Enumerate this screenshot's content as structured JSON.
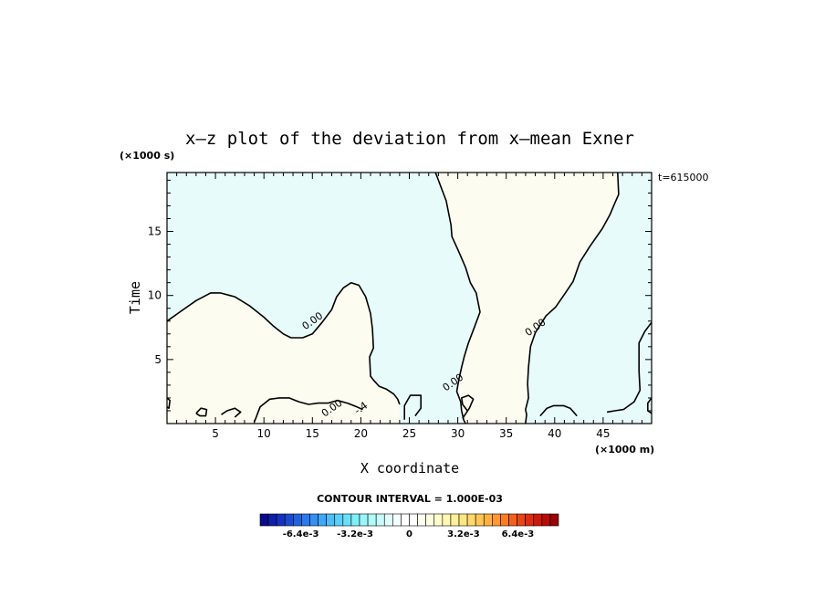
{
  "chart_data": {
    "type": "contour",
    "title": "x–z plot of the deviation from x–mean Exner",
    "xlabel": "X coordinate",
    "ylabel": "Time",
    "x_unit": "(×1000 m)",
    "y_unit": "(×1000 s)",
    "time_stamp": "t=615000",
    "xlim": [
      0,
      50
    ],
    "ylim": [
      0,
      19.6
    ],
    "x_ticks": [
      5,
      10,
      15,
      20,
      25,
      30,
      35,
      40,
      45
    ],
    "y_ticks": [
      5,
      10,
      15
    ],
    "contour_interval_label": "CONTOUR INTERVAL = 1.000E-03",
    "contour_labels": [
      {
        "text": "0.00",
        "x": 15.2,
        "y": 7.8
      },
      {
        "text": "0.00",
        "x": 38.2,
        "y": 7.3
      },
      {
        "text": "0.00",
        "x": 29.7,
        "y": 3.0
      },
      {
        "text": "0.00",
        "x": 17.2,
        "y": 1.0
      },
      {
        "text": "-.4",
        "x": 20.2,
        "y": 1.0
      }
    ],
    "regions": [
      {
        "name": "negative",
        "color": "#e8fbfb"
      },
      {
        "name": "positive",
        "color": "#fcfcf0"
      }
    ],
    "zero_contours": [
      [
        [
          0,
          8.0
        ],
        [
          1.5,
          8.8
        ],
        [
          3.0,
          9.6
        ],
        [
          4.5,
          10.2
        ],
        [
          5.5,
          10.2
        ],
        [
          7.0,
          9.9
        ],
        [
          8.5,
          9.2
        ],
        [
          10.0,
          8.3
        ],
        [
          11.0,
          7.6
        ],
        [
          12.0,
          7.0
        ],
        [
          12.8,
          6.7
        ],
        [
          14.0,
          6.7
        ],
        [
          15.0,
          7.0
        ],
        [
          16.0,
          7.9
        ],
        [
          17.0,
          8.9
        ],
        [
          17.5,
          9.9
        ],
        [
          18.2,
          10.6
        ],
        [
          19.0,
          11.0
        ],
        [
          19.8,
          10.8
        ],
        [
          20.5,
          9.9
        ],
        [
          21.0,
          8.6
        ],
        [
          21.2,
          7.4
        ],
        [
          21.3,
          5.9
        ],
        [
          20.9,
          5.2
        ],
        [
          21.0,
          3.7
        ],
        [
          21.3,
          3.4
        ],
        [
          21.9,
          2.9
        ],
        [
          22.6,
          2.7
        ],
        [
          23.4,
          2.3
        ],
        [
          23.8,
          1.9
        ],
        [
          24.0,
          1.5
        ]
      ],
      [
        [
          27.7,
          19.6
        ],
        [
          28.8,
          17.4
        ],
        [
          29.3,
          15.5
        ],
        [
          29.4,
          14.6
        ],
        [
          30.0,
          13.6
        ],
        [
          30.8,
          12.2
        ],
        [
          31.3,
          11.0
        ],
        [
          31.9,
          10.2
        ],
        [
          32.3,
          8.7
        ],
        [
          31.7,
          7.5
        ],
        [
          31.1,
          6.3
        ],
        [
          30.7,
          5.3
        ],
        [
          30.4,
          4.4
        ],
        [
          30.1,
          3.4
        ],
        [
          29.9,
          2.5
        ],
        [
          30.3,
          1.7
        ],
        [
          30.4,
          1.0
        ],
        [
          30.6,
          0.3
        ],
        [
          30.8,
          0.0
        ]
      ],
      [
        [
          46.5,
          19.6
        ],
        [
          46.6,
          17.9
        ],
        [
          46.2,
          17.2
        ],
        [
          45.7,
          16.3
        ],
        [
          44.9,
          15.2
        ],
        [
          43.6,
          13.8
        ],
        [
          42.6,
          12.6
        ],
        [
          41.9,
          11.1
        ],
        [
          41.1,
          10.2
        ],
        [
          40.1,
          9.1
        ],
        [
          39.1,
          8.4
        ],
        [
          38.0,
          7.1
        ],
        [
          37.5,
          6.0
        ],
        [
          37.3,
          4.4
        ],
        [
          37.2,
          3.1
        ],
        [
          37.3,
          2.0
        ],
        [
          37.0,
          1.1
        ],
        [
          37.1,
          0.7
        ],
        [
          37.0,
          0.0
        ]
      ],
      [
        [
          50,
          7.9
        ],
        [
          49.3,
          7.2
        ],
        [
          48.7,
          6.3
        ],
        [
          48.7,
          4.1
        ],
        [
          48.8,
          2.6
        ],
        [
          48.2,
          1.7
        ],
        [
          47.1,
          1.1
        ],
        [
          46.2,
          1.0
        ],
        [
          45.4,
          0.9
        ]
      ],
      [
        [
          30.5,
          0.4
        ],
        [
          31.2,
          1.2
        ],
        [
          31.6,
          1.9
        ],
        [
          31.1,
          2.2
        ],
        [
          30.4,
          2.0
        ],
        [
          30.5,
          1.5
        ],
        [
          31.0,
          1.0
        ]
      ],
      [
        [
          24.5,
          0.3
        ],
        [
          24.5,
          1.4
        ],
        [
          25.1,
          2.2
        ],
        [
          26.2,
          2.2
        ],
        [
          26.2,
          1.2
        ],
        [
          25.6,
          0.6
        ]
      ],
      [
        [
          9.0,
          0.1
        ],
        [
          9.6,
          1.3
        ],
        [
          10.6,
          1.9
        ],
        [
          11.6,
          2.0
        ],
        [
          12.6,
          2.0
        ],
        [
          13.6,
          1.7
        ],
        [
          14.6,
          1.5
        ],
        [
          15.6,
          1.6
        ],
        [
          16.6,
          1.6
        ],
        [
          17.6,
          1.8
        ],
        [
          18.6,
          1.6
        ],
        [
          19.6,
          1.3
        ],
        [
          20.2,
          1.1
        ]
      ],
      [
        [
          3.0,
          0.8
        ],
        [
          3.5,
          1.2
        ],
        [
          4.1,
          1.1
        ],
        [
          4.0,
          0.6
        ],
        [
          3.4,
          0.6
        ],
        [
          3.0,
          0.8
        ]
      ],
      [
        [
          5.6,
          0.7
        ],
        [
          6.2,
          1.0
        ],
        [
          7.0,
          1.2
        ],
        [
          7.6,
          0.9
        ],
        [
          7.0,
          0.5
        ]
      ],
      [
        [
          0,
          2.0
        ],
        [
          0.3,
          1.8
        ],
        [
          0.2,
          1.2
        ],
        [
          0,
          1.3
        ]
      ],
      [
        [
          38.5,
          0.6
        ],
        [
          39.2,
          1.2
        ],
        [
          39.9,
          1.4
        ],
        [
          40.9,
          1.4
        ],
        [
          41.6,
          1.2
        ],
        [
          42.3,
          0.6
        ]
      ],
      [
        [
          50,
          2.0
        ],
        [
          49.6,
          1.6
        ],
        [
          49.6,
          1.0
        ],
        [
          50,
          0.8
        ]
      ]
    ],
    "positive_fill_regions": [
      [
        [
          0,
          0
        ],
        [
          0,
          8.0
        ],
        [
          1.5,
          8.8
        ],
        [
          3.0,
          9.6
        ],
        [
          4.5,
          10.2
        ],
        [
          5.5,
          10.2
        ],
        [
          7.0,
          9.9
        ],
        [
          8.5,
          9.2
        ],
        [
          10.0,
          8.3
        ],
        [
          11.0,
          7.6
        ],
        [
          12.0,
          7.0
        ],
        [
          12.8,
          6.7
        ],
        [
          14.0,
          6.7
        ],
        [
          15.0,
          7.0
        ],
        [
          16.0,
          7.9
        ],
        [
          17.0,
          8.9
        ],
        [
          17.5,
          9.9
        ],
        [
          18.2,
          10.6
        ],
        [
          19.0,
          11.0
        ],
        [
          19.8,
          10.8
        ],
        [
          20.5,
          9.9
        ],
        [
          21.0,
          8.6
        ],
        [
          21.2,
          7.4
        ],
        [
          21.3,
          5.9
        ],
        [
          20.9,
          5.2
        ],
        [
          21.0,
          3.7
        ],
        [
          21.3,
          3.4
        ],
        [
          21.9,
          2.9
        ],
        [
          22.6,
          2.7
        ],
        [
          23.4,
          2.3
        ],
        [
          23.8,
          1.9
        ],
        [
          24.0,
          1.5
        ],
        [
          24.0,
          0
        ]
      ],
      [
        [
          27.7,
          19.6
        ],
        [
          28.8,
          17.4
        ],
        [
          29.3,
          15.5
        ],
        [
          29.4,
          14.6
        ],
        [
          30.0,
          13.6
        ],
        [
          30.8,
          12.2
        ],
        [
          31.3,
          11.0
        ],
        [
          31.9,
          10.2
        ],
        [
          32.3,
          8.7
        ],
        [
          31.7,
          7.5
        ],
        [
          31.1,
          6.3
        ],
        [
          30.7,
          5.3
        ],
        [
          30.4,
          4.4
        ],
        [
          30.1,
          3.4
        ],
        [
          29.9,
          2.5
        ],
        [
          30.3,
          1.7
        ],
        [
          30.4,
          1.0
        ],
        [
          30.6,
          0.3
        ],
        [
          30.8,
          0.0
        ],
        [
          37.0,
          0.0
        ],
        [
          37.1,
          0.7
        ],
        [
          37.0,
          1.1
        ],
        [
          37.3,
          2.0
        ],
        [
          37.2,
          3.1
        ],
        [
          37.3,
          4.4
        ],
        [
          37.5,
          6.0
        ],
        [
          38.0,
          7.1
        ],
        [
          39.1,
          8.4
        ],
        [
          40.1,
          9.1
        ],
        [
          41.1,
          10.2
        ],
        [
          41.9,
          11.1
        ],
        [
          42.6,
          12.6
        ],
        [
          43.6,
          13.8
        ],
        [
          44.9,
          15.2
        ],
        [
          45.7,
          16.3
        ],
        [
          46.2,
          17.2
        ],
        [
          46.6,
          17.9
        ],
        [
          46.5,
          19.6
        ]
      ]
    ],
    "colorbar": {
      "tick_labels": [
        "-6.4e-3",
        "-3.2e-3",
        "0",
        "3.2e-3",
        "6.4e-3"
      ],
      "tick_values": [
        -0.0064,
        -0.0032,
        0,
        0.0032,
        0.0064
      ],
      "vmin": -0.0088,
      "vmax": 0.0088,
      "colors": [
        "#0a0a8c",
        "#0f1ea8",
        "#1432bf",
        "#1a4ad2",
        "#1f62e0",
        "#2a7aeb",
        "#3690f2",
        "#42a6f6",
        "#4fbcf8",
        "#5ccff8",
        "#6cdff8",
        "#80eef8",
        "#98f6f8",
        "#b0fafa",
        "#c8fcfc",
        "#e0fdfd",
        "#f2fefe",
        "#ffffff",
        "#ffffff",
        "#fffff2",
        "#fffee0",
        "#fffccc",
        "#fff8b4",
        "#fff09c",
        "#ffe684",
        "#ffd86c",
        "#ffc656",
        "#ffb040",
        "#ff9830",
        "#fc7c22",
        "#f4601a",
        "#ea4414",
        "#de2c10",
        "#cc180c",
        "#b40c08",
        "#960404"
      ]
    }
  }
}
